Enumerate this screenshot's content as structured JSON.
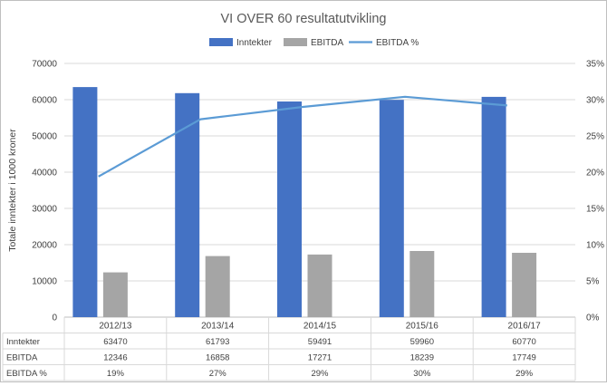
{
  "chart_data": {
    "type": "bar",
    "title": "VI OVER 60 resultatutvikling",
    "ylabel": "Totale inntekter  i 1000 kroner",
    "xlabel": "",
    "categories": [
      "2012/13",
      "2013/14",
      "2014/15",
      "2015/16",
      "2016/17"
    ],
    "series": [
      {
        "name": "Inntekter",
        "kind": "bar",
        "axis": "left",
        "color": "#4472C4",
        "values": [
          63470,
          61793,
          59491,
          59960,
          60770
        ]
      },
      {
        "name": "EBITDA",
        "kind": "bar",
        "axis": "left",
        "color": "#A5A5A5",
        "values": [
          12346,
          16858,
          17271,
          18239,
          17749
        ]
      },
      {
        "name": "EBITDA %",
        "kind": "line",
        "axis": "right",
        "color": "#5B9BD5",
        "values": [
          19.4,
          27.3,
          29.0,
          30.4,
          29.2
        ]
      }
    ],
    "ylim": [
      0,
      70000
    ],
    "yticks": [
      "0",
      "10000",
      "20000",
      "30000",
      "40000",
      "50000",
      "60000",
      "70000"
    ],
    "y2lim": [
      0,
      35
    ],
    "y2ticks": [
      "0%",
      "5%",
      "10%",
      "15%",
      "20%",
      "25%",
      "30%",
      "35%"
    ],
    "legend_position": "top",
    "grid": "horizontal",
    "table": {
      "rows": [
        {
          "label": "Inntekter",
          "cells": [
            "63470",
            "61793",
            "59491",
            "59960",
            "60770"
          ]
        },
        {
          "label": "EBITDA",
          "cells": [
            "12346",
            "16858",
            "17271",
            "18239",
            "17749"
          ]
        },
        {
          "label": "EBITDA %",
          "cells": [
            "19%",
            "27%",
            "29%",
            "30%",
            "29%"
          ]
        }
      ]
    }
  }
}
